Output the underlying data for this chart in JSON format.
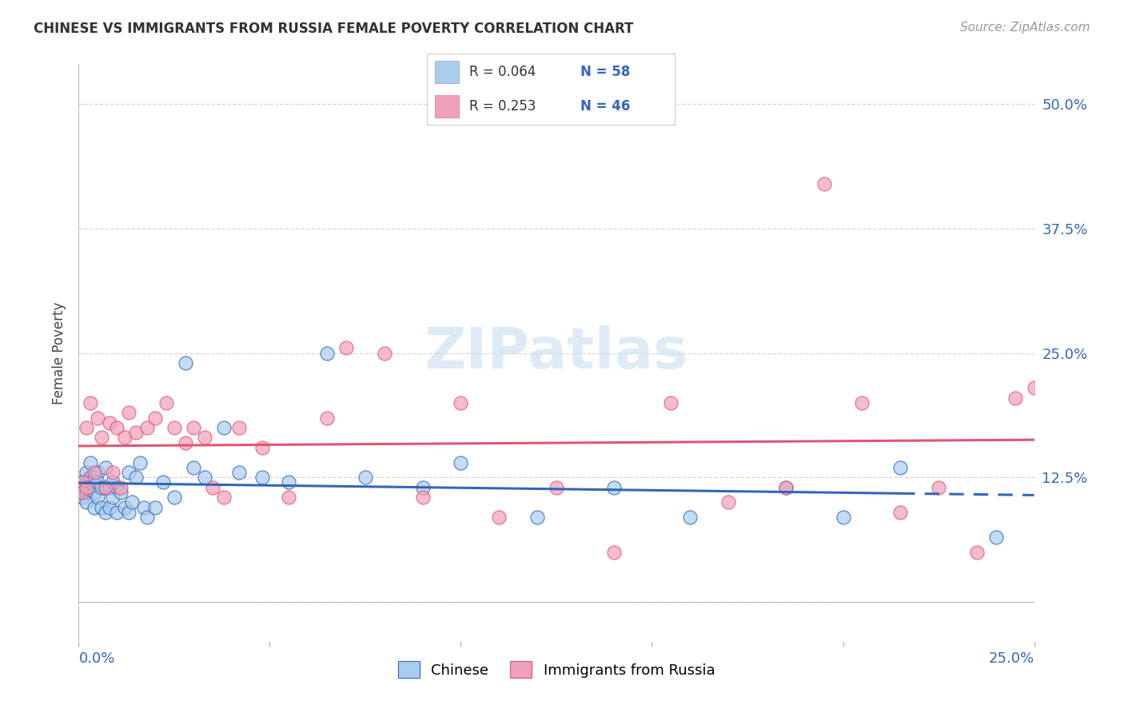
{
  "title": "CHINESE VS IMMIGRANTS FROM RUSSIA FEMALE POVERTY CORRELATION CHART",
  "source": "Source: ZipAtlas.com",
  "ylabel": "Female Poverty",
  "xlim": [
    0.0,
    0.25
  ],
  "ylim": [
    -0.04,
    0.54
  ],
  "ytick_vals": [
    0.0,
    0.125,
    0.25,
    0.375,
    0.5
  ],
  "ytick_labels": [
    "",
    "12.5%",
    "25.0%",
    "37.5%",
    "50.0%"
  ],
  "grid_color": "#cccccc",
  "background_color": "#ffffff",
  "chinese_color": "#aaccee",
  "russian_color": "#f0a0b8",
  "chinese_line_color": "#3366bb",
  "russian_line_color": "#e05575",
  "legend_r_chinese": "R = 0.064",
  "legend_n_chinese": "N = 58",
  "legend_r_russian": "R = 0.253",
  "legend_n_russian": "N = 46",
  "chinese_scatter_x": [
    0.001,
    0.001,
    0.001,
    0.001,
    0.002,
    0.002,
    0.002,
    0.002,
    0.003,
    0.003,
    0.003,
    0.004,
    0.004,
    0.004,
    0.005,
    0.005,
    0.005,
    0.006,
    0.006,
    0.007,
    0.007,
    0.007,
    0.008,
    0.008,
    0.009,
    0.009,
    0.01,
    0.01,
    0.011,
    0.012,
    0.013,
    0.013,
    0.014,
    0.015,
    0.016,
    0.017,
    0.018,
    0.02,
    0.022,
    0.025,
    0.028,
    0.03,
    0.033,
    0.038,
    0.042,
    0.048,
    0.055,
    0.065,
    0.075,
    0.09,
    0.1,
    0.12,
    0.14,
    0.16,
    0.185,
    0.2,
    0.215,
    0.24
  ],
  "chinese_scatter_y": [
    0.12,
    0.115,
    0.11,
    0.105,
    0.13,
    0.12,
    0.11,
    0.1,
    0.14,
    0.125,
    0.115,
    0.125,
    0.11,
    0.095,
    0.13,
    0.12,
    0.105,
    0.115,
    0.095,
    0.135,
    0.115,
    0.09,
    0.115,
    0.095,
    0.12,
    0.105,
    0.115,
    0.09,
    0.11,
    0.095,
    0.13,
    0.09,
    0.1,
    0.125,
    0.14,
    0.095,
    0.085,
    0.095,
    0.12,
    0.105,
    0.24,
    0.135,
    0.125,
    0.175,
    0.13,
    0.125,
    0.12,
    0.25,
    0.125,
    0.115,
    0.14,
    0.085,
    0.115,
    0.085,
    0.115,
    0.085,
    0.135,
    0.065
  ],
  "russian_scatter_x": [
    0.001,
    0.001,
    0.002,
    0.002,
    0.003,
    0.004,
    0.005,
    0.006,
    0.007,
    0.008,
    0.009,
    0.01,
    0.011,
    0.012,
    0.013,
    0.015,
    0.018,
    0.02,
    0.023,
    0.025,
    0.028,
    0.03,
    0.033,
    0.035,
    0.038,
    0.042,
    0.048,
    0.055,
    0.065,
    0.07,
    0.08,
    0.09,
    0.1,
    0.11,
    0.125,
    0.14,
    0.155,
    0.17,
    0.185,
    0.195,
    0.205,
    0.215,
    0.225,
    0.235,
    0.245,
    0.25
  ],
  "russian_scatter_y": [
    0.12,
    0.11,
    0.175,
    0.115,
    0.2,
    0.13,
    0.185,
    0.165,
    0.115,
    0.18,
    0.13,
    0.175,
    0.115,
    0.165,
    0.19,
    0.17,
    0.175,
    0.185,
    0.2,
    0.175,
    0.16,
    0.175,
    0.165,
    0.115,
    0.105,
    0.175,
    0.155,
    0.105,
    0.185,
    0.255,
    0.25,
    0.105,
    0.2,
    0.085,
    0.115,
    0.05,
    0.2,
    0.1,
    0.115,
    0.42,
    0.2,
    0.09,
    0.115,
    0.05,
    0.205,
    0.215
  ],
  "chinese_line_solid_end": 0.215,
  "watermark_text": "ZIPatlas",
  "watermark_color": "#c8dff0"
}
